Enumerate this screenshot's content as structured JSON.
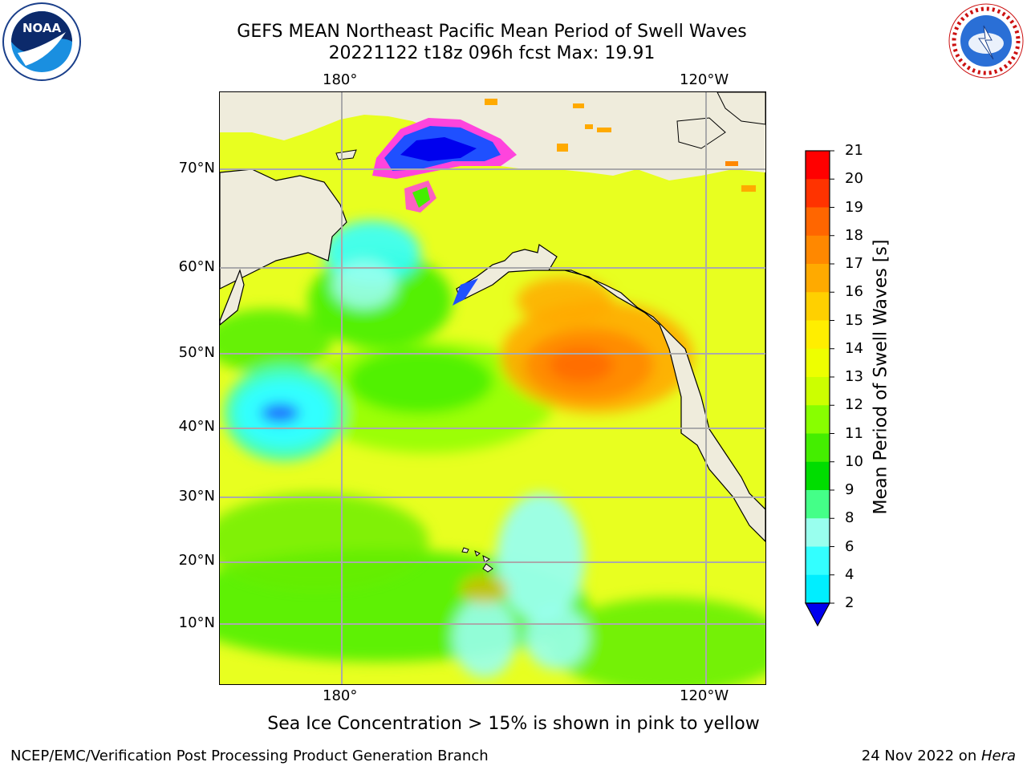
{
  "title": {
    "line1": "GEFS MEAN Northeast Pacific Mean Period of Swell Waves",
    "line2": "20221122 t18z 096h fcst   Max: 19.91"
  },
  "map": {
    "top_lon_labels": [
      "180°",
      "120°W"
    ],
    "bottom_lon_labels": [
      "180°",
      "120°W"
    ],
    "lat_labels": [
      "70°N",
      "60°N",
      "50°N",
      "40°N",
      "30°N",
      "20°N",
      "10°N"
    ]
  },
  "colorbar": {
    "label": "Mean Period of Swell Waves [s]",
    "ticks": [
      "21",
      "20",
      "19",
      "18",
      "17",
      "16",
      "15",
      "14",
      "13",
      "12",
      "11",
      "10",
      "9",
      "8",
      "6",
      "4",
      "2"
    ],
    "colors": [
      "#ff0000",
      "#ff3300",
      "#ff6600",
      "#ff8800",
      "#ffaa00",
      "#ffd000",
      "#ffee00",
      "#eeff00",
      "#ccff00",
      "#88ff00",
      "#44ee00",
      "#00dd00",
      "#44ff88",
      "#99ffee",
      "#33ffff",
      "#00eeff",
      "#0088ff"
    ],
    "extend_color": "#0000ee"
  },
  "footnote": "Sea Ice Concentration > 15% is shown in pink to yellow",
  "footer": {
    "left": "NCEP/EMC/Verification Post Processing Product Generation Branch",
    "right_date": "24 Nov 2022 on ",
    "right_host": "Hera"
  },
  "logos": {
    "noaa": "NOAA",
    "nws": "NATIONAL WEATHER SERVICE"
  },
  "colors": {
    "land": "#efecdc",
    "grid": "#aaaaaa",
    "ice_pink": "#ff44dd",
    "ocean_base": "#e8ff20"
  }
}
